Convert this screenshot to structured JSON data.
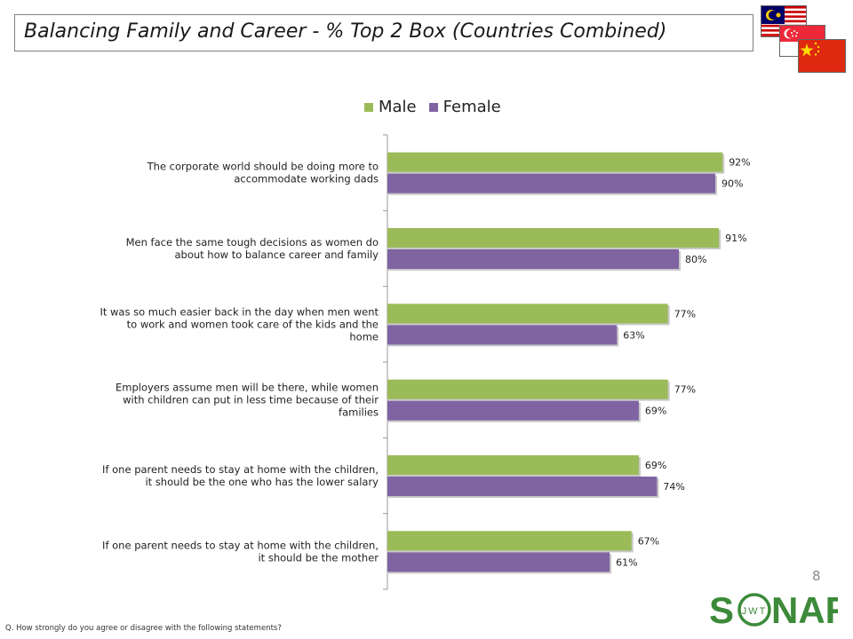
{
  "header": {
    "title": "Balancing Family and Career - % Top 2 Box (Countries Combined)",
    "flags": [
      "Malaysia flag",
      "Singapore flag",
      "China flag"
    ]
  },
  "chart_data": {
    "type": "bar",
    "orientation": "horizontal",
    "categories": [
      "The corporate world should be doing more to accommodate working dads",
      "Men face the same tough decisions as women do about how to balance career and family",
      "It was so much easier back in the day when men went to work and women took care of the kids and the home",
      "Employers assume men will be there, while women with children can put in less time because of their families",
      "If one parent needs to stay at home with the children, it should be the one who has the lower salary",
      "If one parent needs to stay at home with the children, it should be the mother"
    ],
    "category_lines": [
      [
        "The corporate world should be doing more to",
        "accommodate working dads"
      ],
      [
        "Men face the same tough decisions as women do",
        "about how to balance career and family"
      ],
      [
        "It was so much easier back in the day when men went",
        "to work and women took care of the kids and the",
        "home"
      ],
      [
        "Employers assume men will be there, while women",
        "with children can put in less time because of their",
        "families"
      ],
      [
        "If one parent needs to stay at home with the children,",
        "it should be the one who has the lower salary"
      ],
      [
        "If one parent needs to stay at home with the children,",
        "it should be the mother"
      ]
    ],
    "series": [
      {
        "name": "Male",
        "color": "#9bbb59",
        "values": [
          92,
          91,
          77,
          77,
          69,
          67
        ],
        "labels": [
          "92%",
          "91%",
          "77%",
          "77%",
          "69%",
          "67%"
        ]
      },
      {
        "name": "Female",
        "color": "#8064a2",
        "values": [
          90,
          80,
          63,
          69,
          74,
          61
        ],
        "labels": [
          "90%",
          "80%",
          "63%",
          "69%",
          "74%",
          "61%"
        ]
      }
    ],
    "xlim": [
      0,
      100
    ],
    "legend_position": "top",
    "grid": false,
    "title": "",
    "xlabel": "",
    "ylabel": ""
  },
  "footer": {
    "page_number": "8",
    "note": "Q. How strongly do you agree or disagree with the following statements?",
    "logo_main": "S NAR",
    "logo_inner": "JWT"
  },
  "colors": {
    "male": "#9bbb59",
    "female": "#8064a2",
    "logo_green": "#3c8a3a"
  }
}
